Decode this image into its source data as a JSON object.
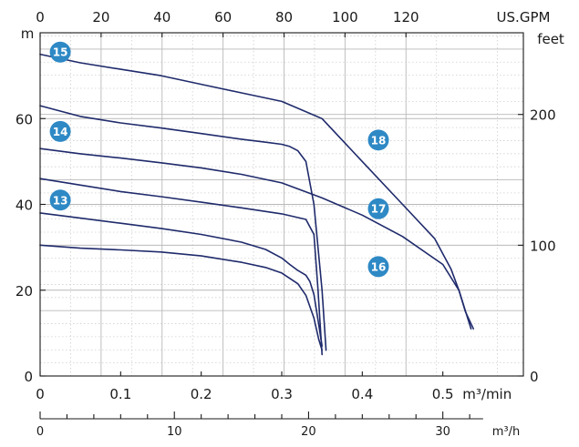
{
  "chart_data": {
    "type": "line",
    "axes": {
      "left": {
        "unit": "m",
        "ticks": [
          0,
          20,
          40,
          60
        ],
        "ylim": [
          0,
          80
        ]
      },
      "right": {
        "unit": "feet",
        "ticks": [
          0,
          100,
          200
        ]
      },
      "top": {
        "unit": "US.GPM",
        "ticks": [
          0,
          20,
          40,
          60,
          80,
          100,
          120
        ]
      },
      "bottom": {
        "unit": "m³/min",
        "ticks": [
          "0",
          "0.1",
          "0.2",
          "0.3",
          "0.4",
          "0.5"
        ],
        "xlim": [
          0,
          0.6
        ]
      },
      "secondary_bottom": {
        "unit": "m³/h",
        "ticks": [
          0,
          10,
          20,
          30
        ]
      }
    },
    "grid": true,
    "series": [
      {
        "name": "13",
        "x": [
          0,
          0.05,
          0.1,
          0.15,
          0.2,
          0.25,
          0.28,
          0.3,
          0.32,
          0.33,
          0.34,
          0.346,
          0.35
        ],
        "y": [
          30.5,
          29.8,
          29.4,
          28.9,
          28.0,
          26.5,
          25.3,
          24.0,
          21.5,
          18.8,
          13.5,
          8.5,
          6.0
        ]
      },
      {
        "name": "14",
        "x": [
          0,
          0.05,
          0.1,
          0.15,
          0.2,
          0.25,
          0.28,
          0.3,
          0.31,
          0.32,
          0.33,
          0.335,
          0.34,
          0.345,
          0.35
        ],
        "y": [
          38.0,
          36.8,
          35.6,
          34.4,
          33.0,
          31.2,
          29.5,
          27.5,
          26.0,
          24.6,
          23.5,
          22.0,
          19.0,
          13.0,
          7.0
        ]
      },
      {
        "name": "15",
        "x": [
          0,
          0.05,
          0.1,
          0.15,
          0.2,
          0.25,
          0.3,
          0.33,
          0.34,
          0.345,
          0.35
        ],
        "y": [
          46.0,
          44.5,
          43.0,
          41.8,
          40.5,
          39.2,
          37.8,
          36.5,
          33.0,
          20.0,
          5.0
        ]
      },
      {
        "name": "16",
        "x": [
          0,
          0.05,
          0.1,
          0.15,
          0.2,
          0.25,
          0.3,
          0.35,
          0.4,
          0.45,
          0.5,
          0.52,
          0.535
        ],
        "y": [
          53.0,
          51.8,
          50.8,
          49.7,
          48.5,
          47.0,
          45.0,
          41.5,
          37.5,
          32.5,
          26.0,
          20.0,
          11.0
        ]
      },
      {
        "name": "17",
        "x": [
          0,
          0.05,
          0.1,
          0.15,
          0.2,
          0.25,
          0.3,
          0.35,
          0.4,
          0.45,
          0.49,
          0.51,
          0.52,
          0.528,
          0.538
        ],
        "y": [
          75.0,
          73.0,
          71.5,
          70.0,
          68.0,
          66.0,
          64.0,
          60.0,
          50.0,
          40.0,
          32.0,
          25.0,
          20.0,
          15.0,
          11.0
        ]
      },
      {
        "name": "18",
        "x": [
          0,
          0.05,
          0.1,
          0.15,
          0.2,
          0.25,
          0.28,
          0.3,
          0.31,
          0.32,
          0.33,
          0.34,
          0.35,
          0.355
        ],
        "y": [
          63.0,
          60.5,
          59.0,
          57.8,
          56.5,
          55.2,
          54.5,
          54.0,
          53.5,
          52.5,
          50.0,
          40.0,
          20.0,
          6.0
        ]
      }
    ]
  }
}
